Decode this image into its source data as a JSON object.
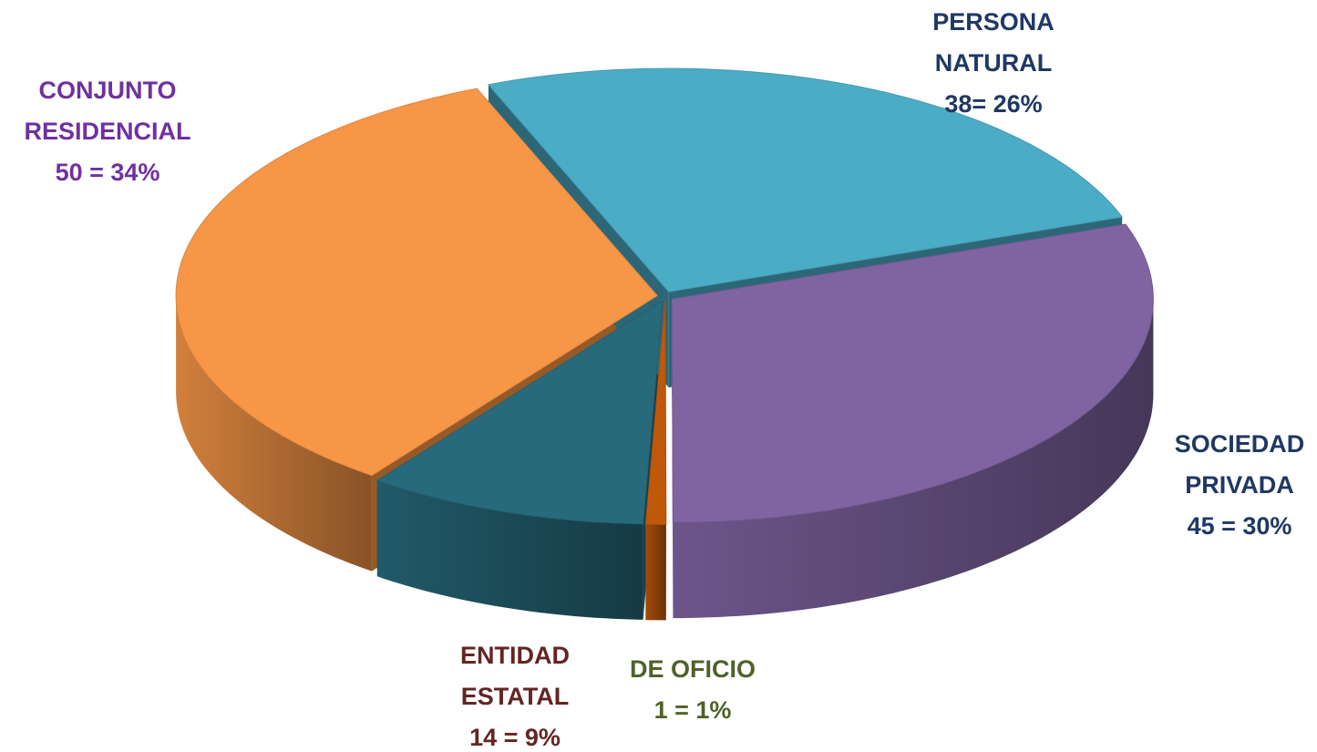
{
  "chart_data": {
    "type": "pie3d",
    "categories": [
      "PERSONA NATURAL",
      "SOCIEDAD PRIVADA",
      "DE OFICIO",
      "ENTIDAD ESTATAL",
      "CONJUNTO RESIDENCIAL"
    ],
    "values": [
      38,
      45,
      1,
      14,
      50
    ],
    "value_labels": [
      "38= 26%",
      "45 = 30%",
      "1 = 1%",
      "14 = 9%",
      "50 = 34%"
    ],
    "colors": [
      "#4bacc6",
      "#8064a2",
      "#c0580a",
      "#276a7c",
      "#f79646"
    ],
    "label_colors": [
      "#1f3864",
      "#1f3864",
      "#4f6228",
      "#632523",
      "#7030a0"
    ]
  }
}
